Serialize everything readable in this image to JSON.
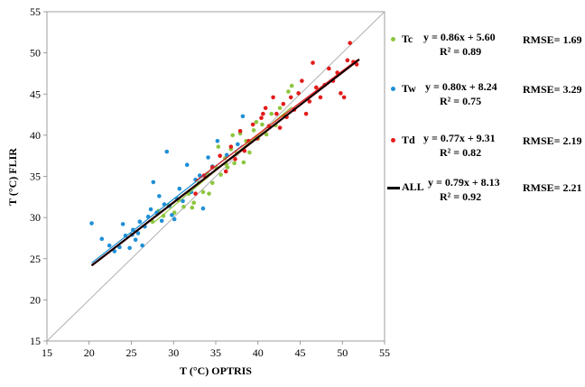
{
  "chart_data": {
    "type": "scatter",
    "xlabel": "T (°C) OPTRIS",
    "ylabel": "T (°C) FLIR",
    "xlim": [
      15,
      55
    ],
    "ylim": [
      15,
      55
    ],
    "xticks": [
      "15",
      "20",
      "25",
      "30",
      "35",
      "40",
      "45",
      "50",
      "55"
    ],
    "yticks": [
      "15",
      "20",
      "25",
      "30",
      "35",
      "40",
      "45",
      "50",
      "55"
    ],
    "grid": false,
    "reference_line": "1:1",
    "legend_position": "right",
    "series": [
      {
        "name": "Tc",
        "color": "#8dc63f",
        "equation": "y = 0.86x + 5.60",
        "r2": "R² = 0.89",
        "rmse": "RMSE= 1.69",
        "slope": 0.86,
        "intercept": 5.6,
        "points": [
          [
            27.5,
            29.5
          ],
          [
            28.2,
            30.8
          ],
          [
            28.8,
            30.2
          ],
          [
            29.4,
            31.5
          ],
          [
            30.1,
            30.6
          ],
          [
            30.6,
            32.1
          ],
          [
            31.2,
            31.3
          ],
          [
            31.8,
            32.9
          ],
          [
            32.4,
            31.8
          ],
          [
            33.0,
            34.2
          ],
          [
            33.5,
            33.1
          ],
          [
            34.0,
            35.3
          ],
          [
            34.6,
            34.2
          ],
          [
            35.1,
            36.0
          ],
          [
            35.6,
            35.2
          ],
          [
            36.1,
            37.2
          ],
          [
            36.4,
            36.1
          ],
          [
            36.8,
            38.3
          ],
          [
            37.2,
            36.6
          ],
          [
            37.5,
            37.8
          ],
          [
            37.9,
            40.2
          ],
          [
            38.3,
            36.7
          ],
          [
            38.6,
            39.3
          ],
          [
            39.0,
            37.9
          ],
          [
            39.5,
            40.6
          ],
          [
            40.0,
            39.6
          ],
          [
            40.5,
            41.3
          ],
          [
            41.0,
            40.1
          ],
          [
            41.6,
            42.6
          ],
          [
            42.1,
            41.2
          ],
          [
            42.6,
            43.3
          ],
          [
            43.1,
            42.4
          ],
          [
            43.6,
            45.3
          ],
          [
            44.0,
            46.0
          ],
          [
            36.2,
            36.5
          ],
          [
            37.0,
            40.0
          ],
          [
            35.3,
            38.6
          ],
          [
            39.8,
            41.6
          ],
          [
            32.2,
            31.2
          ],
          [
            34.2,
            32.9
          ]
        ]
      },
      {
        "name": "Tw",
        "color": "#1e90d6",
        "equation": "y = 0.80x + 8.24",
        "r2": "R² = 0.75",
        "rmse": "RMSE= 3.29",
        "slope": 0.8,
        "intercept": 8.24,
        "points": [
          [
            20.3,
            29.3
          ],
          [
            21.5,
            27.4
          ],
          [
            22.4,
            26.6
          ],
          [
            23.0,
            25.9
          ],
          [
            23.6,
            26.4
          ],
          [
            24.0,
            29.2
          ],
          [
            24.3,
            27.8
          ],
          [
            24.8,
            26.3
          ],
          [
            25.2,
            28.5
          ],
          [
            25.5,
            27.3
          ],
          [
            25.8,
            28.1
          ],
          [
            26.0,
            29.5
          ],
          [
            26.3,
            26.6
          ],
          [
            26.6,
            28.9
          ],
          [
            27.0,
            30.1
          ],
          [
            27.3,
            31.0
          ],
          [
            27.6,
            34.3
          ],
          [
            28.0,
            30.6
          ],
          [
            28.3,
            32.6
          ],
          [
            28.6,
            29.6
          ],
          [
            28.9,
            31.6
          ],
          [
            29.2,
            38.0
          ],
          [
            29.5,
            31.4
          ],
          [
            29.8,
            30.3
          ],
          [
            30.1,
            29.8
          ],
          [
            30.4,
            32.3
          ],
          [
            30.7,
            33.5
          ],
          [
            31.1,
            32.0
          ],
          [
            31.6,
            36.4
          ],
          [
            32.1,
            33.1
          ],
          [
            32.6,
            34.6
          ],
          [
            33.1,
            35.1
          ],
          [
            33.5,
            31.1
          ],
          [
            34.1,
            37.3
          ],
          [
            34.6,
            36.2
          ],
          [
            35.2,
            39.3
          ],
          [
            36.3,
            37.6
          ],
          [
            37.6,
            38.9
          ],
          [
            38.2,
            42.3
          ],
          [
            25.1,
            27.9
          ]
        ]
      },
      {
        "name": "Td",
        "color": "#e31b1b",
        "equation": "y = 0.77x + 9.31",
        "r2": "R² = 0.82",
        "rmse": "RMSE= 2.19",
        "slope": 0.77,
        "intercept": 9.31,
        "points": [
          [
            32.6,
            32.9
          ],
          [
            33.6,
            35.1
          ],
          [
            34.6,
            36.1
          ],
          [
            35.5,
            37.5
          ],
          [
            36.2,
            35.6
          ],
          [
            36.8,
            38.6
          ],
          [
            37.3,
            37.1
          ],
          [
            37.9,
            40.5
          ],
          [
            38.4,
            38.1
          ],
          [
            38.9,
            39.3
          ],
          [
            39.4,
            41.3
          ],
          [
            39.9,
            39.6
          ],
          [
            40.4,
            42.1
          ],
          [
            40.9,
            43.3
          ],
          [
            41.3,
            41.1
          ],
          [
            41.8,
            44.6
          ],
          [
            42.2,
            42.6
          ],
          [
            42.6,
            40.9
          ],
          [
            43.0,
            43.8
          ],
          [
            43.4,
            42.2
          ],
          [
            43.9,
            44.6
          ],
          [
            44.3,
            43.1
          ],
          [
            44.8,
            45.1
          ],
          [
            45.2,
            46.6
          ],
          [
            45.7,
            42.6
          ],
          [
            46.1,
            44.1
          ],
          [
            46.5,
            48.8
          ],
          [
            46.9,
            45.8
          ],
          [
            47.4,
            44.6
          ],
          [
            47.9,
            46.1
          ],
          [
            48.4,
            48.1
          ],
          [
            48.9,
            46.6
          ],
          [
            49.4,
            47.6
          ],
          [
            49.8,
            45.1
          ],
          [
            50.2,
            44.6
          ],
          [
            50.6,
            49.1
          ],
          [
            50.9,
            51.2
          ],
          [
            51.3,
            48.9
          ],
          [
            51.7,
            48.6
          ],
          [
            40.6,
            42.6
          ]
        ]
      }
    ],
    "fit_all": {
      "name": "ALL",
      "color": "#000000",
      "equation": "y = 0.79x + 8.13",
      "r2": "R² = 0.92",
      "rmse": "RMSE= 2.21",
      "slope": 0.79,
      "intercept": 8.13,
      "x_range": [
        20.3,
        52.0
      ]
    }
  }
}
